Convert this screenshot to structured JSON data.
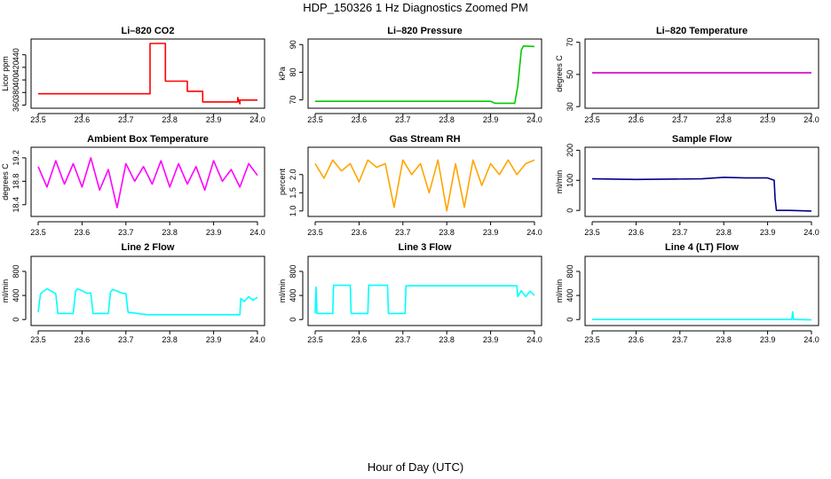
{
  "figure": {
    "title": "HDP_150326  1 Hz Diagnostics Zoomed PM",
    "xlabel": "Hour of Day (UTC)"
  },
  "chart_data": [
    {
      "type": "line",
      "title": "Li–820 CO2",
      "ylabel": "Licor ppm",
      "color": "#ff0000",
      "xlim": [
        23.5,
        24.0
      ],
      "ylim": [
        355,
        465
      ],
      "xticks": [
        "23.5",
        "23.6",
        "23.7",
        "23.8",
        "23.9",
        "24.0"
      ],
      "yticks": [
        "360",
        "380",
        "400",
        "420",
        "440"
      ],
      "series": [
        {
          "x": [
            23.5,
            23.6,
            23.7,
            23.755,
            23.755,
            23.79,
            23.79,
            23.84,
            23.84,
            23.875,
            23.875,
            23.955,
            23.955,
            23.96,
            23.96,
            24.0
          ],
          "y": [
            378,
            378,
            378,
            378,
            458,
            458,
            398,
            398,
            382,
            382,
            365,
            365,
            372,
            362,
            368,
            368
          ]
        }
      ]
    },
    {
      "type": "line",
      "title": "Li–820 Pressure",
      "ylabel": "kPa",
      "color": "#00cc00",
      "xlim": [
        23.5,
        24.0
      ],
      "ylim": [
        67,
        92
      ],
      "xticks": [
        "23.5",
        "23.6",
        "23.7",
        "23.8",
        "23.9",
        "24.0"
      ],
      "yticks": [
        "70",
        "80",
        "90"
      ],
      "series": [
        {
          "x": [
            23.5,
            23.9,
            23.91,
            23.955,
            23.962,
            23.97,
            23.975,
            24.0
          ],
          "y": [
            69.5,
            69.5,
            68.8,
            68.8,
            75,
            88,
            89.5,
            89.3
          ]
        }
      ]
    },
    {
      "type": "line",
      "title": "Li–820 Temperature",
      "ylabel": "degrees C",
      "color": "#cc00cc",
      "xlim": [
        23.5,
        24.0
      ],
      "ylim": [
        29,
        72
      ],
      "xticks": [
        "23.5",
        "23.6",
        "23.7",
        "23.8",
        "23.9",
        "24.0"
      ],
      "yticks": [
        "30",
        "50",
        "70"
      ],
      "series": [
        {
          "x": [
            23.5,
            24.0
          ],
          "y": [
            51,
            51
          ]
        }
      ]
    },
    {
      "type": "line",
      "title": "Ambient Box Temperature",
      "ylabel": "degrees C",
      "color": "#ff00ff",
      "xlim": [
        23.5,
        24.0
      ],
      "ylim": [
        18.2,
        19.38
      ],
      "xticks": [
        "23.5",
        "23.6",
        "23.7",
        "23.8",
        "23.9",
        "24.0"
      ],
      "yticks": [
        "18.4",
        "18.8",
        "19.2"
      ],
      "series": [
        {
          "x": [
            23.5,
            23.52,
            23.54,
            23.56,
            23.58,
            23.6,
            23.62,
            23.64,
            23.66,
            23.68,
            23.7,
            23.72,
            23.74,
            23.76,
            23.78,
            23.8,
            23.82,
            23.84,
            23.86,
            23.88,
            23.9,
            23.92,
            23.94,
            23.96,
            23.98,
            24.0
          ],
          "y": [
            19.05,
            18.7,
            19.15,
            18.75,
            19.1,
            18.7,
            19.2,
            18.65,
            19.0,
            18.35,
            19.1,
            18.8,
            19.05,
            18.75,
            19.15,
            18.7,
            19.1,
            18.75,
            19.05,
            18.65,
            19.15,
            18.8,
            19.0,
            18.7,
            19.1,
            18.9
          ]
        }
      ]
    },
    {
      "type": "line",
      "title": "Gas Stream RH",
      "ylabel": "percent",
      "color": "#ffa500",
      "xlim": [
        23.5,
        24.0
      ],
      "ylim": [
        0.85,
        2.75
      ],
      "xticks": [
        "23.5",
        "23.6",
        "23.7",
        "23.8",
        "23.9",
        "24.0"
      ],
      "yticks": [
        "1.0",
        "1.5",
        "2.0"
      ],
      "series": [
        {
          "x": [
            23.5,
            23.52,
            23.54,
            23.56,
            23.58,
            23.6,
            23.62,
            23.64,
            23.66,
            23.68,
            23.7,
            23.72,
            23.74,
            23.76,
            23.78,
            23.8,
            23.82,
            23.84,
            23.86,
            23.88,
            23.9,
            23.92,
            23.94,
            23.96,
            23.98,
            24.0
          ],
          "y": [
            2.3,
            1.9,
            2.4,
            2.1,
            2.3,
            1.8,
            2.4,
            2.2,
            2.3,
            1.1,
            2.4,
            2.0,
            2.3,
            1.5,
            2.4,
            1.0,
            2.3,
            1.1,
            2.4,
            1.7,
            2.3,
            2.0,
            2.4,
            2.0,
            2.3,
            2.4
          ]
        }
      ]
    },
    {
      "type": "line",
      "title": "Sample Flow",
      "ylabel": "ml/min",
      "color": "#00008b",
      "xlim": [
        23.5,
        24.0
      ],
      "ylim": [
        -20,
        210
      ],
      "xticks": [
        "23.5",
        "23.6",
        "23.7",
        "23.8",
        "23.9",
        "24.0"
      ],
      "yticks": [
        "0",
        "100",
        "200"
      ],
      "series": [
        {
          "x": [
            23.5,
            23.6,
            23.75,
            23.8,
            23.85,
            23.9,
            23.915,
            23.917,
            23.92,
            23.95,
            24.0
          ],
          "y": [
            105,
            103,
            105,
            110,
            108,
            108,
            100,
            40,
            0,
            0,
            -2
          ]
        }
      ]
    },
    {
      "type": "line",
      "title": "Line 2 Flow",
      "ylabel": "ml/min",
      "color": "#00ffff",
      "xlim": [
        23.5,
        24.0
      ],
      "ylim": [
        -100,
        1050
      ],
      "xticks": [
        "23.5",
        "23.6",
        "23.7",
        "23.8",
        "23.9",
        "24.0"
      ],
      "yticks": [
        "0",
        "400",
        "800"
      ],
      "series": [
        {
          "x": [
            23.5,
            23.505,
            23.51,
            23.52,
            23.53,
            23.54,
            23.545,
            23.58,
            23.585,
            23.59,
            23.6,
            23.61,
            23.62,
            23.625,
            23.66,
            23.665,
            23.67,
            23.68,
            23.69,
            23.7,
            23.705,
            23.75,
            23.96,
            23.962,
            23.97,
            23.98,
            23.99,
            24.0
          ],
          "y": [
            120,
            420,
            460,
            510,
            470,
            430,
            100,
            100,
            470,
            510,
            480,
            440,
            440,
            100,
            100,
            460,
            500,
            470,
            440,
            430,
            120,
            80,
            80,
            350,
            300,
            380,
            320,
            370
          ]
        }
      ]
    },
    {
      "type": "line",
      "title": "Line 3 Flow",
      "ylabel": "ml/min",
      "color": "#00ffff",
      "xlim": [
        23.5,
        24.0
      ],
      "ylim": [
        -100,
        1050
      ],
      "xticks": [
        "23.5",
        "23.6",
        "23.7",
        "23.8",
        "23.9",
        "24.0"
      ],
      "yticks": [
        "0",
        "400",
        "800"
      ],
      "series": [
        {
          "x": [
            23.5,
            23.502,
            23.504,
            23.54,
            23.542,
            23.58,
            23.582,
            23.62,
            23.622,
            23.665,
            23.667,
            23.705,
            23.707,
            23.95,
            23.96,
            23.962,
            23.97,
            23.98,
            23.99,
            24.0
          ],
          "y": [
            100,
            540,
            100,
            100,
            570,
            570,
            100,
            100,
            570,
            570,
            100,
            100,
            560,
            560,
            560,
            380,
            480,
            380,
            470,
            400
          ]
        }
      ]
    },
    {
      "type": "line",
      "title": "Line 4 (LT) Flow",
      "ylabel": "ml/min",
      "color": "#00ffff",
      "xlim": [
        23.5,
        24.0
      ],
      "ylim": [
        -100,
        1050
      ],
      "xticks": [
        "23.5",
        "23.6",
        "23.7",
        "23.8",
        "23.9",
        "24.0"
      ],
      "yticks": [
        "0",
        "400",
        "800"
      ],
      "series": [
        {
          "x": [
            23.5,
            23.955,
            23.957,
            23.959,
            23.962,
            24.0
          ],
          "y": [
            0,
            0,
            130,
            0,
            0,
            -5
          ]
        }
      ]
    }
  ]
}
